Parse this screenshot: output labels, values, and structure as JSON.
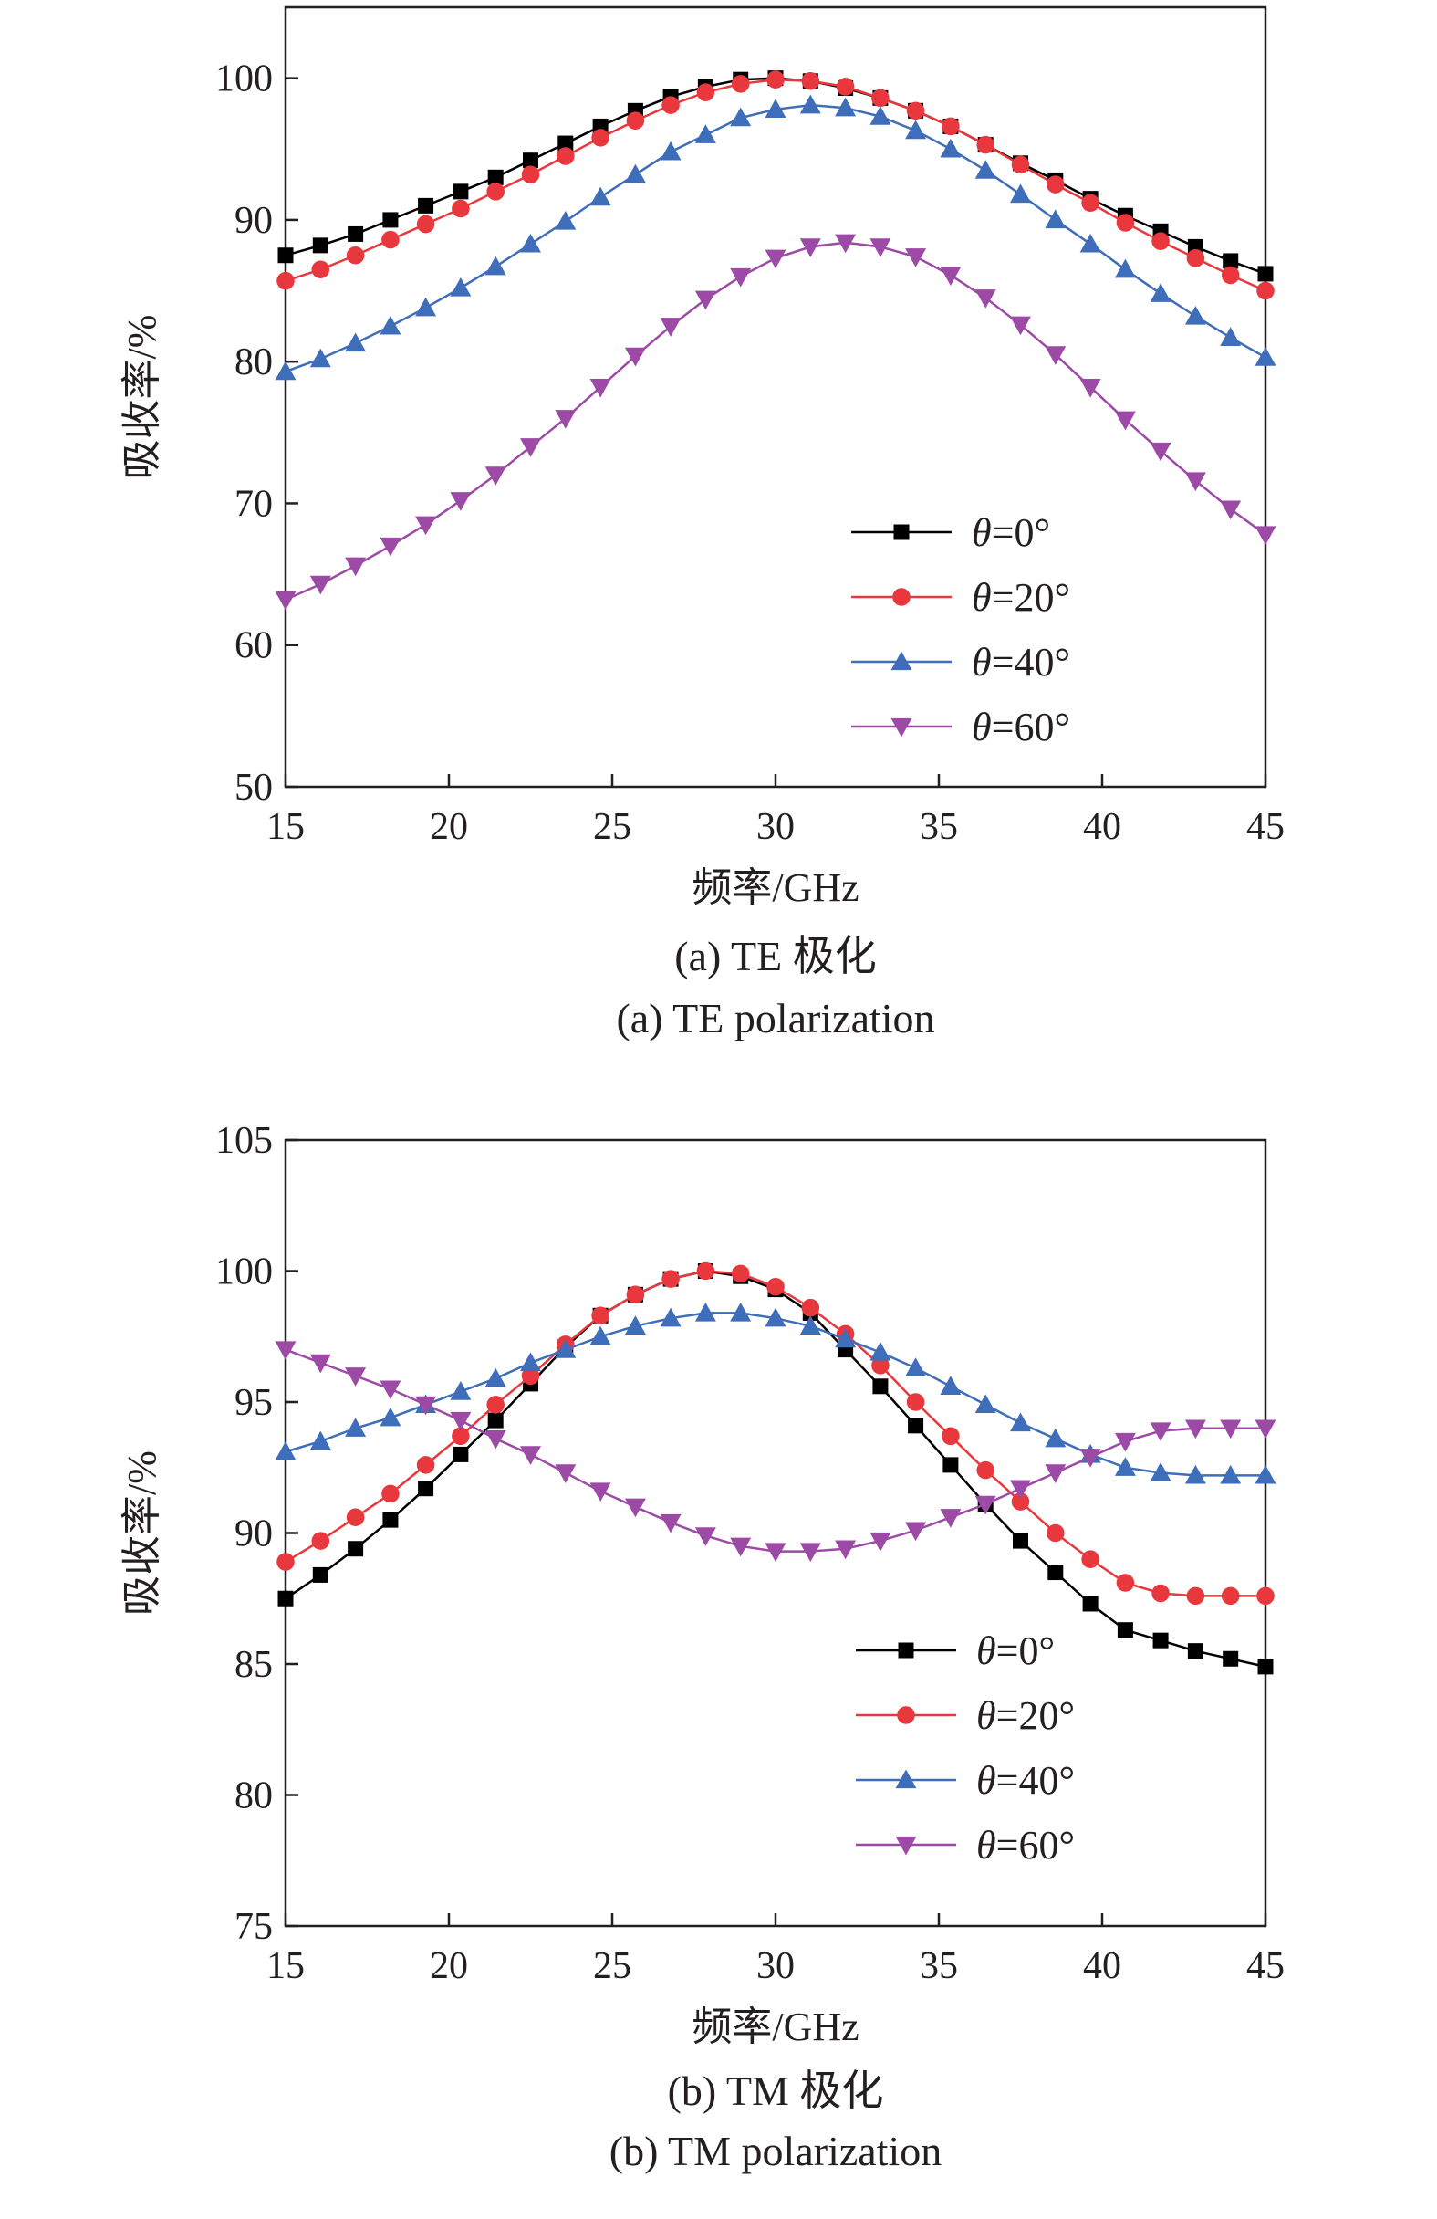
{
  "chart_data": [
    {
      "type": "line",
      "title": "",
      "xlabel": "频率/GHz",
      "ylabel": "吸收率/%",
      "xlim": [
        15,
        45
      ],
      "ylim": [
        50,
        105
      ],
      "xticks": [
        15,
        20,
        25,
        30,
        35,
        40,
        45
      ],
      "yticks": [
        50,
        60,
        70,
        80,
        90,
        100
      ],
      "grid": false,
      "legend_position": "lower-right",
      "caption_cn": "(a) TE 极化",
      "caption_en": "(a) TE polarization",
      "series": [
        {
          "name": "θ=0°",
          "theta": "0°",
          "color": "#000000",
          "marker": "square",
          "x": [
            15,
            16.07,
            17.14,
            18.21,
            19.29,
            20.36,
            21.43,
            22.5,
            23.57,
            24.64,
            25.71,
            26.79,
            27.86,
            28.93,
            30,
            31.07,
            32.14,
            33.21,
            34.29,
            35.36,
            36.43,
            37.5,
            38.57,
            39.64,
            40.71,
            41.79,
            42.86,
            43.93,
            45
          ],
          "y": [
            87.5,
            88.2,
            89.0,
            90.0,
            91.0,
            92.0,
            93.0,
            94.2,
            95.4,
            96.6,
            97.7,
            98.7,
            99.4,
            99.9,
            100.0,
            99.8,
            99.3,
            98.6,
            97.7,
            96.6,
            95.3,
            94.0,
            92.8,
            91.5,
            90.3,
            89.2,
            88.1,
            87.1,
            86.2
          ]
        },
        {
          "name": "θ=20°",
          "theta": "20°",
          "color": "#e8383d",
          "marker": "circle",
          "x": [
            15,
            16.07,
            17.14,
            18.21,
            19.29,
            20.36,
            21.43,
            22.5,
            23.57,
            24.64,
            25.71,
            26.79,
            27.86,
            28.93,
            30,
            31.07,
            32.14,
            33.21,
            34.29,
            35.36,
            36.43,
            37.5,
            38.57,
            39.64,
            40.71,
            41.79,
            42.86,
            43.93,
            45
          ],
          "y": [
            85.7,
            86.5,
            87.5,
            88.6,
            89.7,
            90.8,
            92.0,
            93.2,
            94.5,
            95.8,
            97.0,
            98.1,
            99.0,
            99.6,
            99.9,
            99.8,
            99.4,
            98.6,
            97.7,
            96.6,
            95.3,
            93.9,
            92.5,
            91.2,
            89.8,
            88.5,
            87.3,
            86.1,
            85.0
          ]
        },
        {
          "name": "θ=40°",
          "theta": "40°",
          "color": "#3e6dba",
          "marker": "triangle-up",
          "x": [
            15,
            16.07,
            17.14,
            18.21,
            19.29,
            20.36,
            21.43,
            22.5,
            23.57,
            24.64,
            25.71,
            26.79,
            27.86,
            28.93,
            30,
            31.07,
            32.14,
            33.21,
            34.29,
            35.36,
            36.43,
            37.5,
            38.57,
            39.64,
            40.71,
            41.79,
            42.86,
            43.93,
            45
          ],
          "y": [
            79.3,
            80.2,
            81.3,
            82.5,
            83.8,
            85.2,
            86.7,
            88.3,
            89.9,
            91.6,
            93.2,
            94.8,
            96.0,
            97.2,
            97.8,
            98.1,
            97.9,
            97.3,
            96.3,
            95.0,
            93.5,
            91.8,
            90.0,
            88.3,
            86.5,
            84.8,
            83.2,
            81.7,
            80.3
          ]
        },
        {
          "name": "θ=60°",
          "theta": "60°",
          "color": "#9c4aa6",
          "marker": "triangle-down",
          "x": [
            15,
            16.07,
            17.14,
            18.21,
            19.29,
            20.36,
            21.43,
            22.5,
            23.57,
            24.64,
            25.71,
            26.79,
            27.86,
            28.93,
            30,
            31.07,
            32.14,
            33.21,
            34.29,
            35.36,
            36.43,
            37.5,
            38.57,
            39.64,
            40.71,
            41.79,
            42.86,
            43.93,
            45
          ],
          "y": [
            63.2,
            64.3,
            65.6,
            67.0,
            68.5,
            70.2,
            72.0,
            74.0,
            76.0,
            78.2,
            80.4,
            82.5,
            84.4,
            86.0,
            87.3,
            88.1,
            88.4,
            88.1,
            87.4,
            86.1,
            84.5,
            82.6,
            80.5,
            78.2,
            75.9,
            73.7,
            71.6,
            69.6,
            67.8
          ]
        }
      ]
    },
    {
      "type": "line",
      "title": "",
      "xlabel": "频率/GHz",
      "ylabel": "吸收率/%",
      "xlim": [
        15,
        45
      ],
      "ylim": [
        75,
        105
      ],
      "xticks": [
        15,
        20,
        25,
        30,
        35,
        40,
        45
      ],
      "yticks": [
        75,
        80,
        85,
        90,
        95,
        100,
        105
      ],
      "grid": false,
      "legend_position": "lower-right",
      "caption_cn": "(b) TM 极化",
      "caption_en": "(b) TM polarization",
      "series": [
        {
          "name": "θ=0°",
          "theta": "0°",
          "color": "#000000",
          "marker": "square",
          "x": [
            15,
            16.07,
            17.14,
            18.21,
            19.29,
            20.36,
            21.43,
            22.5,
            23.57,
            24.64,
            25.71,
            26.79,
            27.86,
            28.93,
            30,
            31.07,
            32.14,
            33.21,
            34.29,
            35.36,
            36.43,
            37.5,
            38.57,
            39.64,
            40.71,
            41.79,
            42.86,
            43.93,
            45
          ],
          "y": [
            87.5,
            88.4,
            89.4,
            90.5,
            91.7,
            93.0,
            94.3,
            95.7,
            97.1,
            98.3,
            99.1,
            99.7,
            100.0,
            99.8,
            99.3,
            98.4,
            97.0,
            95.6,
            94.1,
            92.6,
            91.1,
            89.7,
            88.5,
            87.3,
            86.3,
            85.9,
            85.5,
            85.2,
            84.9
          ]
        },
        {
          "name": "θ=20°",
          "theta": "20°",
          "color": "#e8383d",
          "marker": "circle",
          "x": [
            15,
            16.07,
            17.14,
            18.21,
            19.29,
            20.36,
            21.43,
            22.5,
            23.57,
            24.64,
            25.71,
            26.79,
            27.86,
            28.93,
            30,
            31.07,
            32.14,
            33.21,
            34.29,
            35.36,
            36.43,
            37.5,
            38.57,
            39.64,
            40.71,
            41.79,
            42.86,
            43.93,
            45
          ],
          "y": [
            88.9,
            89.7,
            90.6,
            91.5,
            92.6,
            93.7,
            94.9,
            96.0,
            97.2,
            98.3,
            99.1,
            99.7,
            100.0,
            99.9,
            99.4,
            98.6,
            97.6,
            96.4,
            95.0,
            93.7,
            92.4,
            91.2,
            90.0,
            89.0,
            88.1,
            87.7,
            87.6,
            87.6,
            87.6
          ]
        },
        {
          "name": "θ=40°",
          "theta": "40°",
          "color": "#3e6dba",
          "marker": "triangle-up",
          "x": [
            15,
            16.07,
            17.14,
            18.21,
            19.29,
            20.36,
            21.43,
            22.5,
            23.57,
            24.64,
            25.71,
            26.79,
            27.86,
            28.93,
            30,
            31.07,
            32.14,
            33.21,
            34.29,
            35.36,
            36.43,
            37.5,
            38.57,
            39.64,
            40.71,
            41.79,
            42.86,
            43.93,
            45
          ],
          "y": [
            93.1,
            93.5,
            94.0,
            94.4,
            94.9,
            95.4,
            95.9,
            96.5,
            97.0,
            97.5,
            97.9,
            98.2,
            98.4,
            98.4,
            98.2,
            97.9,
            97.4,
            96.9,
            96.3,
            95.6,
            94.9,
            94.2,
            93.6,
            93.0,
            92.5,
            92.3,
            92.2,
            92.2,
            92.2
          ]
        },
        {
          "name": "θ=60°",
          "theta": "60°",
          "color": "#9c4aa6",
          "marker": "triangle-down",
          "x": [
            15,
            16.07,
            17.14,
            18.21,
            19.29,
            20.36,
            21.43,
            22.5,
            23.57,
            24.64,
            25.71,
            26.79,
            27.86,
            28.93,
            30,
            31.07,
            32.14,
            33.21,
            34.29,
            35.36,
            36.43,
            37.5,
            38.57,
            39.64,
            40.71,
            41.79,
            42.86,
            43.93,
            45
          ],
          "y": [
            97.0,
            96.5,
            96.0,
            95.5,
            94.9,
            94.3,
            93.6,
            93.0,
            92.3,
            91.6,
            91.0,
            90.4,
            89.9,
            89.5,
            89.3,
            89.3,
            89.4,
            89.7,
            90.1,
            90.6,
            91.1,
            91.7,
            92.3,
            92.9,
            93.5,
            93.9,
            94.0,
            94.0,
            94.0
          ]
        }
      ]
    }
  ]
}
